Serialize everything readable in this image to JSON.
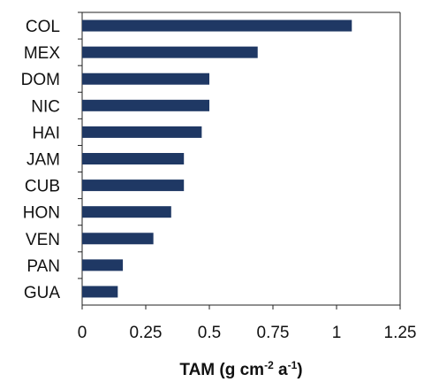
{
  "chart_data": {
    "type": "bar",
    "orientation": "horizontal",
    "categories": [
      "COL",
      "MEX",
      "DOM",
      "NIC",
      "HAI",
      "JAM",
      "CUB",
      "HON",
      "VEN",
      "PAN",
      "GUA"
    ],
    "values": [
      1.06,
      0.69,
      0.5,
      0.5,
      0.47,
      0.4,
      0.4,
      0.35,
      0.28,
      0.16,
      0.14
    ],
    "xlabel_parts": {
      "base": "TAM (g cm",
      "exp1": "-2",
      "mid": " a",
      "exp2": "-1",
      "end": ")"
    },
    "x_ticks": [
      "0",
      "0.25",
      "0.5",
      "0.75",
      "1",
      "1.25"
    ],
    "x_tick_values": [
      0,
      0.25,
      0.5,
      0.75,
      1,
      1.25
    ],
    "xlim": [
      0,
      1.25
    ],
    "grid": false,
    "bar_color": "#1f3864"
  }
}
